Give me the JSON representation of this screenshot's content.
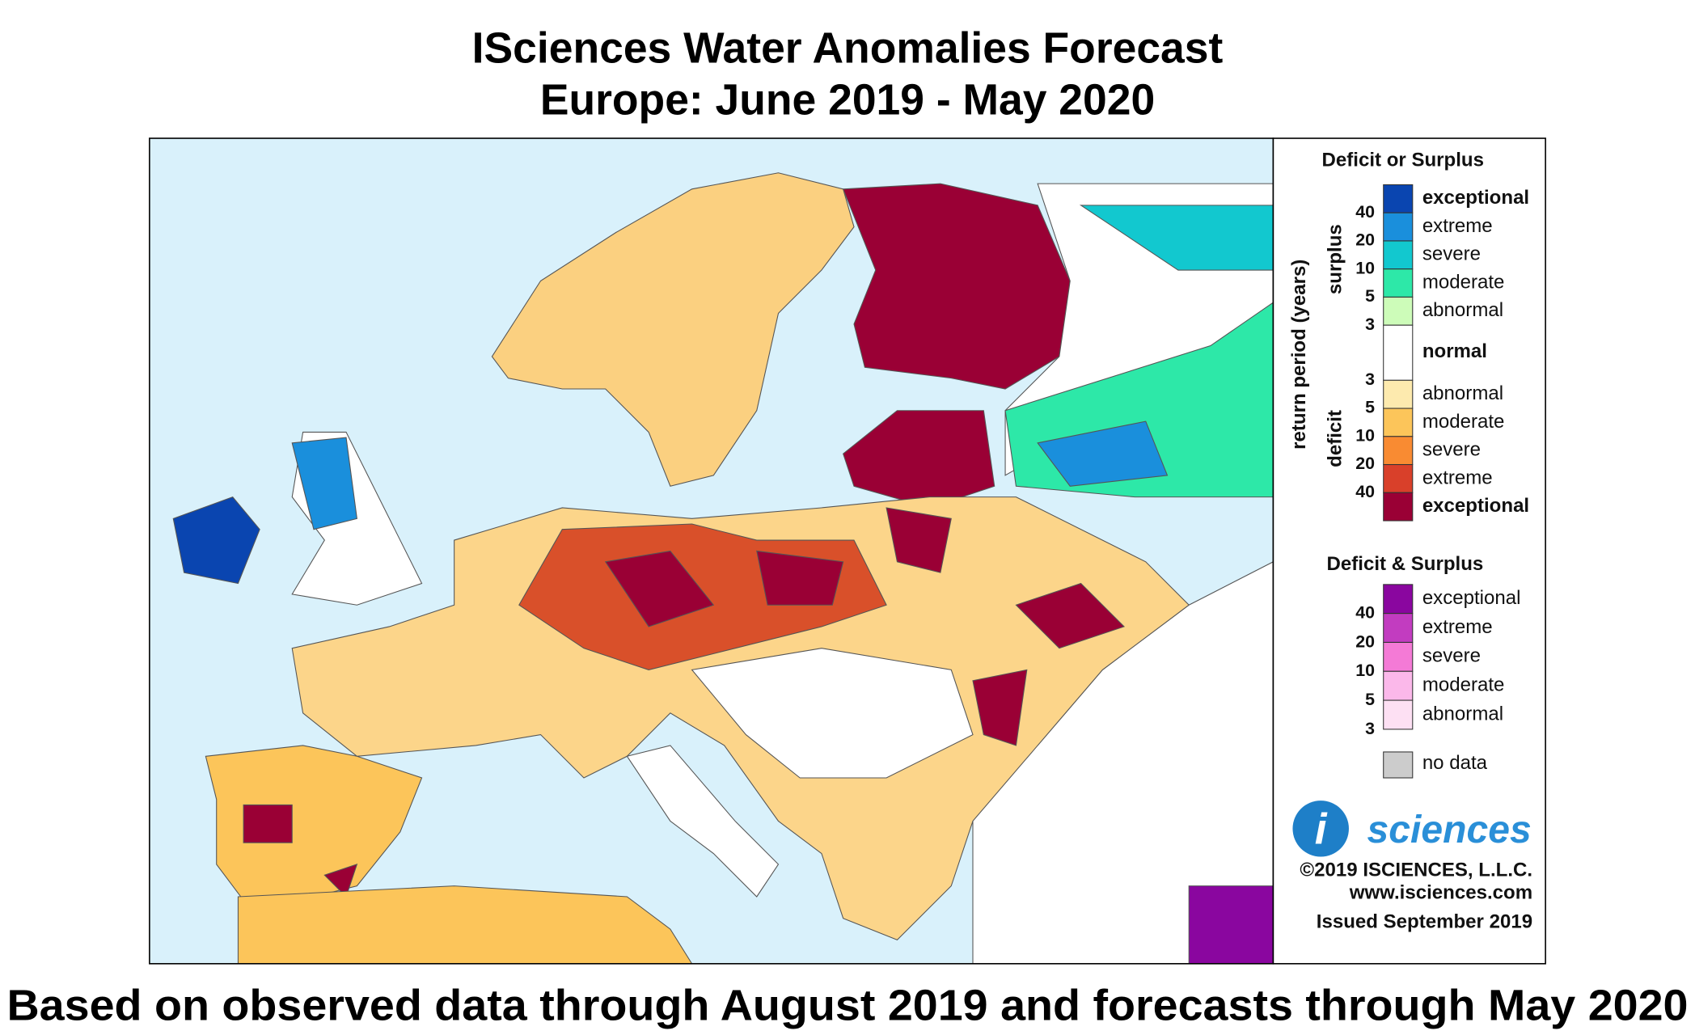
{
  "title": [
    "ISciences Water Anomalies Forecast",
    "Europe: June 2019 - May 2020"
  ],
  "legend": {
    "deficit_or_surplus": {
      "title": "Deficit or Surplus",
      "axis_label": "return period (years)",
      "surplus_label": "surplus",
      "deficit_label": "deficit",
      "surplus_ticks": [
        40,
        20,
        10,
        5,
        3
      ],
      "deficit_ticks": [
        3,
        5,
        10,
        20,
        40
      ],
      "surplus_classes": [
        {
          "label": "exceptional",
          "color": "#0a45b0"
        },
        {
          "label": "extreme",
          "color": "#1a8fdc"
        },
        {
          "label": "severe",
          "color": "#12c8cf"
        },
        {
          "label": "moderate",
          "color": "#2de8a8"
        },
        {
          "label": "abnormal",
          "color": "#cdfcb9"
        }
      ],
      "normal": "normal",
      "deficit_classes": [
        {
          "label": "abnormal",
          "color": "#fdeaae"
        },
        {
          "label": "moderate",
          "color": "#fcc55a"
        },
        {
          "label": "severe",
          "color": "#f98b32"
        },
        {
          "label": "extreme",
          "color": "#d9402a"
        },
        {
          "label": "exceptional",
          "color": "#9a0035"
        }
      ]
    },
    "deficit_and_surplus": {
      "title": "Deficit & Surplus",
      "ticks": [
        40,
        20,
        10,
        5,
        3
      ],
      "classes": [
        {
          "label": "exceptional",
          "color": "#8a069f"
        },
        {
          "label": "extreme",
          "color": "#c23cc0"
        },
        {
          "label": "severe",
          "color": "#f47ad6"
        },
        {
          "label": "moderate",
          "color": "#fbb8ea"
        },
        {
          "label": "abnormal",
          "color": "#fde0f3"
        }
      ]
    },
    "no_data": {
      "label": "no data",
      "color": "#cccccc"
    }
  },
  "logo": {
    "mark": "i",
    "name": "sciences"
  },
  "credits": [
    "©2019 ISCIENCES, L.L.C.",
    "www.isciences.com",
    "Issued September 2019"
  ],
  "footer": "Based on observed data through August 2019 and forecasts through May 2020"
}
